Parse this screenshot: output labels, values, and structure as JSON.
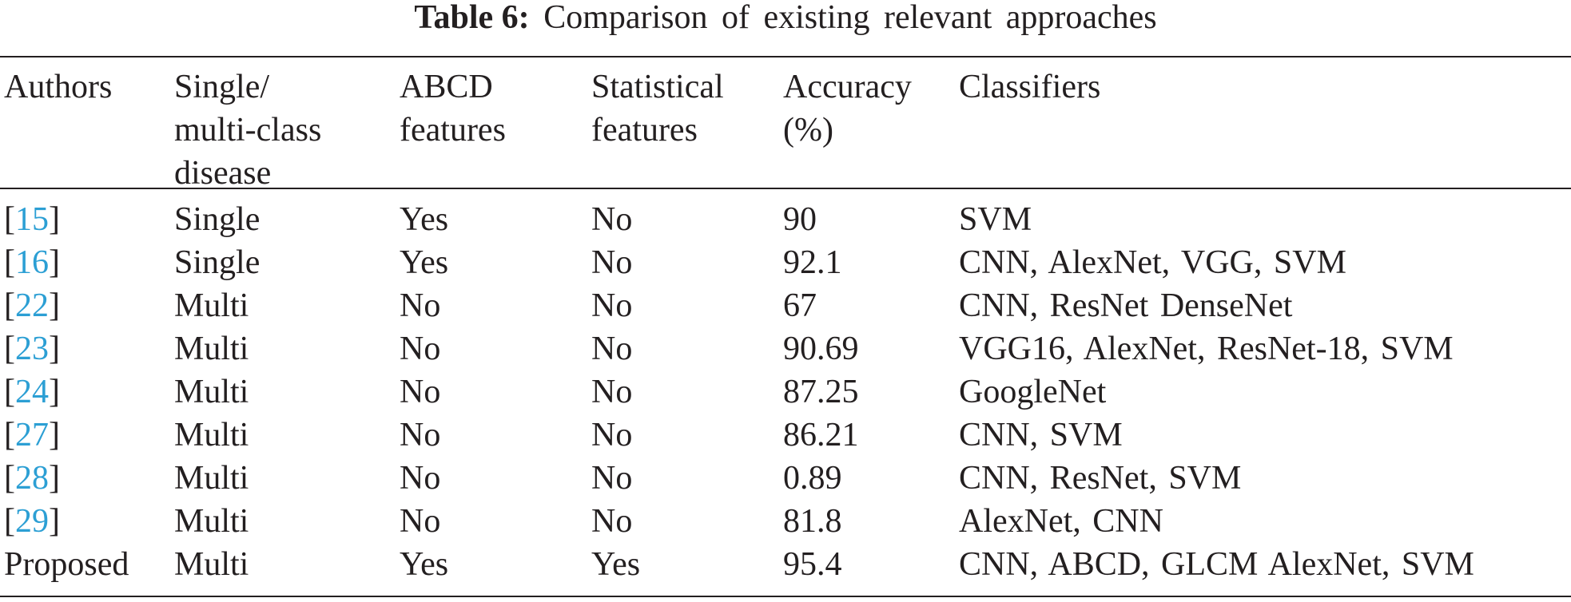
{
  "caption": {
    "label": "Table 6:",
    "text": "Comparison of existing relevant approaches"
  },
  "headers": [
    "Authors",
    "Single/\nmulti-class\ndisease",
    "ABCD\nfeatures",
    "Statistical\nfeatures",
    "Accuracy\n(%)",
    "Classifiers"
  ],
  "rows": [
    {
      "ref": "15",
      "label": "",
      "type": "Single",
      "abcd": "Yes",
      "statistical": "No",
      "accuracy": "90",
      "classifiers": "SVM"
    },
    {
      "ref": "16",
      "label": "",
      "type": "Single",
      "abcd": "Yes",
      "statistical": "No",
      "accuracy": "92.1",
      "classifiers": "CNN, AlexNet, VGG, SVM"
    },
    {
      "ref": "22",
      "label": "",
      "type": "Multi",
      "abcd": "No",
      "statistical": "No",
      "accuracy": "67",
      "classifiers": "CNN, ResNet DenseNet"
    },
    {
      "ref": "23",
      "label": "",
      "type": "Multi",
      "abcd": "No",
      "statistical": "No",
      "accuracy": "90.69",
      "classifiers": "VGG16, AlexNet, ResNet-18, SVM"
    },
    {
      "ref": "24",
      "label": "",
      "type": "Multi",
      "abcd": "No",
      "statistical": "No",
      "accuracy": "87.25",
      "classifiers": "GoogleNet"
    },
    {
      "ref": "27",
      "label": "",
      "type": "Multi",
      "abcd": "No",
      "statistical": "No",
      "accuracy": "86.21",
      "classifiers": "CNN, SVM"
    },
    {
      "ref": "28",
      "label": "",
      "type": "Multi",
      "abcd": "No",
      "statistical": "No",
      "accuracy": "0.89",
      "classifiers": "CNN, ResNet, SVM"
    },
    {
      "ref": "29",
      "label": "",
      "type": "Multi",
      "abcd": "No",
      "statistical": "No",
      "accuracy": "81.8",
      "classifiers": "AlexNet, CNN"
    },
    {
      "ref": "",
      "label": "Proposed",
      "type": "Multi",
      "abcd": "Yes",
      "statistical": "Yes",
      "accuracy": "95.4",
      "classifiers": "CNN, ABCD, GLCM AlexNet, SVM"
    }
  ]
}
